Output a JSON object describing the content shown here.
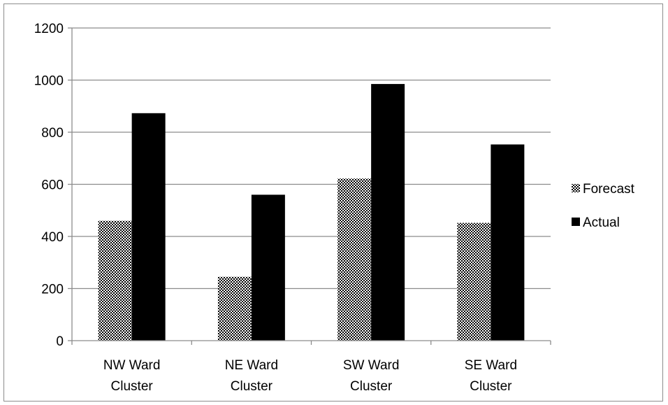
{
  "chart_data": {
    "type": "bar",
    "title": "",
    "xlabel": "",
    "ylabel": "",
    "categories": [
      [
        "NW Ward",
        "Cluster"
      ],
      [
        "NE Ward",
        "Cluster"
      ],
      [
        "SW Ward",
        "Cluster"
      ],
      [
        "SE Ward",
        "Cluster"
      ]
    ],
    "series": [
      {
        "name": "Forecast",
        "values": [
          460,
          245,
          622,
          452
        ],
        "fill": "checker",
        "color": "#000000"
      },
      {
        "name": "Actual",
        "values": [
          873,
          560,
          985,
          753
        ],
        "fill": "solid",
        "color": "#000000"
      }
    ],
    "ylim": [
      0,
      1200
    ],
    "yticks": [
      0,
      200,
      400,
      600,
      800,
      1000,
      1200
    ],
    "grid": true,
    "legend": "right",
    "colors": {
      "gridline": "#8c8c8c",
      "axis": "#8c8c8c",
      "frame": "#8c8c8c"
    }
  }
}
